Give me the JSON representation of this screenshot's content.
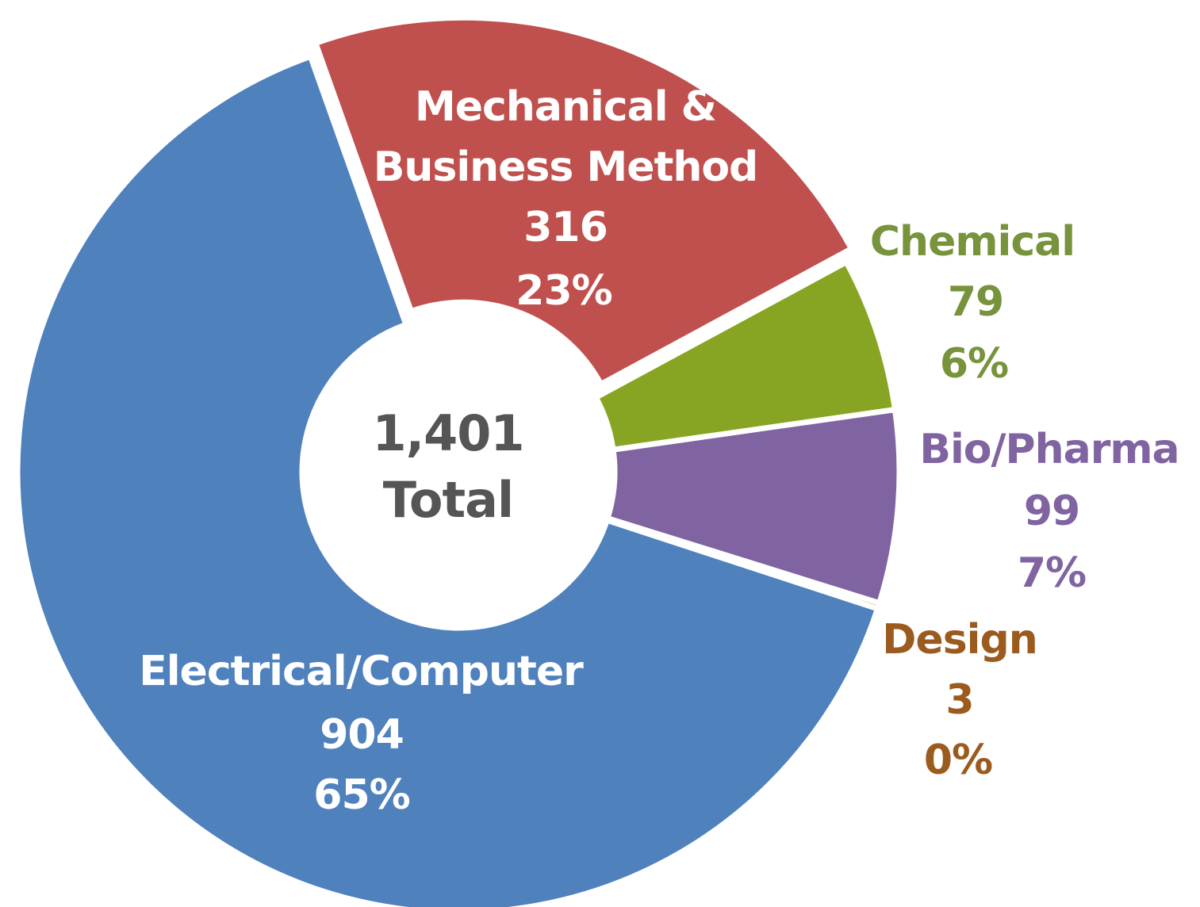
{
  "chart_data": {
    "type": "pie",
    "style": "donut",
    "total_value": "1,401",
    "total_label": "Total",
    "slices": [
      {
        "name": "Mechanical &",
        "name_line2": "Business Method",
        "value": 316,
        "percent_label": "23%",
        "color": "#C0504D",
        "label_color": "#FFFFFF"
      },
      {
        "name": "Chemical",
        "name_line2": "",
        "value": 79,
        "percent_label": "6%",
        "color": "#87A522",
        "label_color": "#77933C"
      },
      {
        "name": "Bio/Pharma",
        "name_line2": "",
        "value": 99,
        "percent_label": "7%",
        "color": "#8064A2",
        "label_color": "#8064A2"
      },
      {
        "name": "Design",
        "name_line2": "",
        "value": 3,
        "percent_label": "0%",
        "color": "#9B5B1E",
        "label_color": "#9B5B1E"
      },
      {
        "name": "Electrical/Computer",
        "name_line2": "",
        "value": 904,
        "percent_label": "65%",
        "color": "#4F81BD",
        "label_color": "#FFFFFF"
      }
    ]
  }
}
